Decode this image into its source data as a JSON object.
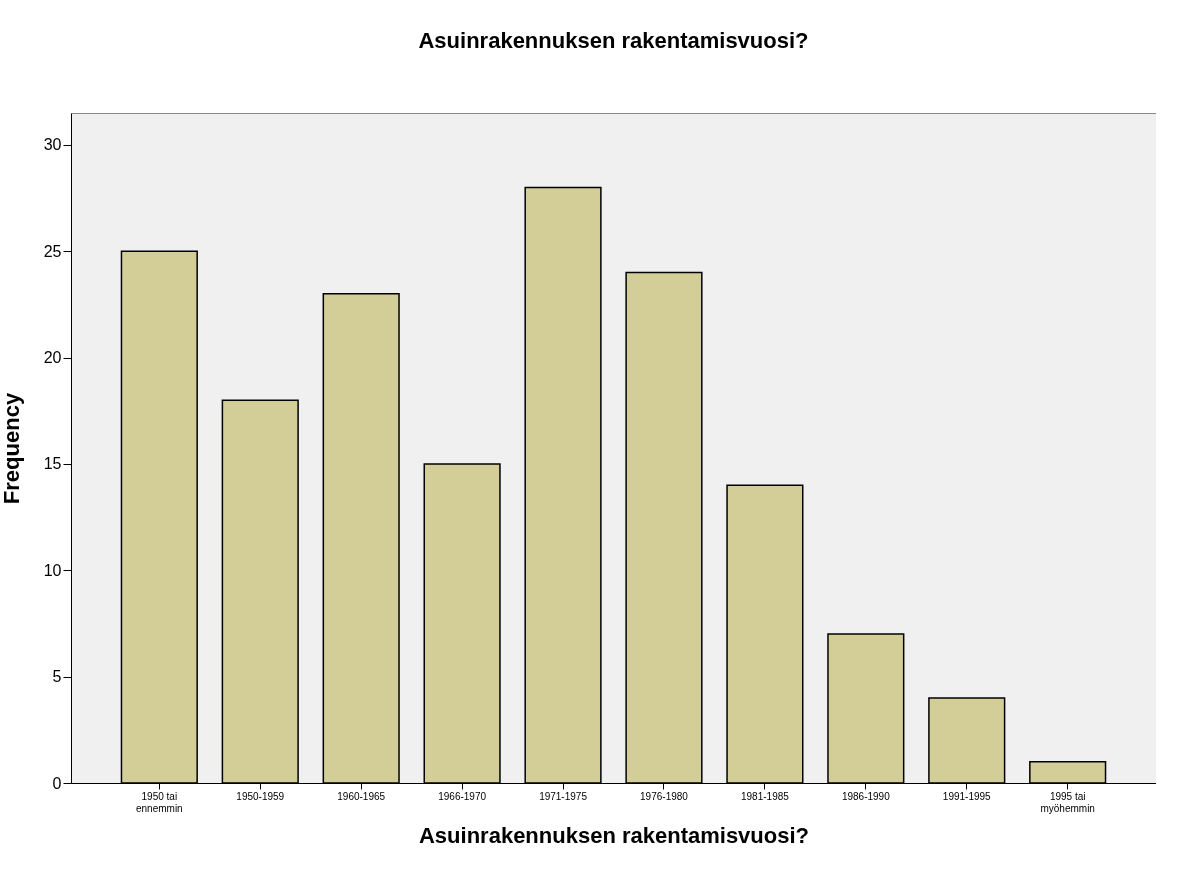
{
  "chart_data": {
    "type": "bar",
    "title": "Asuinrakennuksen rakentamisvuosi?",
    "xlabel": "Asuinrakennuksen rakentamisvuosi?",
    "ylabel": "Frequency",
    "categories": [
      "1950 tai\nennemmin",
      "1950-1959",
      "1960-1965",
      "1966-1970",
      "1971-1975",
      "1976-1980",
      "1981-1985",
      "1986-1990",
      "1991-1995",
      "1995 tai\nmyöhemmin"
    ],
    "values": [
      25,
      18,
      23,
      15,
      28,
      24,
      14,
      7,
      4,
      1
    ],
    "color": "#d3ce97",
    "ylim": [
      0,
      31.5
    ],
    "yticks": [
      0,
      5,
      10,
      15,
      20,
      25,
      30
    ],
    "grid": false
  }
}
